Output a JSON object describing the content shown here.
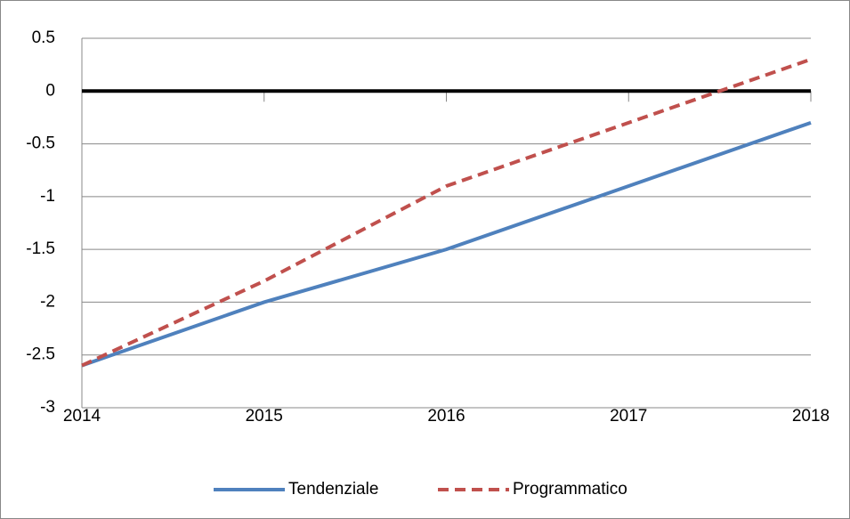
{
  "chart_data": {
    "type": "line",
    "x": [
      2014,
      2015,
      2016,
      2017,
      2018
    ],
    "series": [
      {
        "name": "Tendenziale",
        "color": "#4f81bd",
        "style": "solid",
        "values": [
          -2.6,
          -2.0,
          -1.5,
          -0.9,
          -0.3
        ]
      },
      {
        "name": "Programmatico",
        "color": "#c0504d",
        "style": "dashed",
        "values": [
          -2.6,
          -1.8,
          -0.9,
          -0.3,
          0.3
        ]
      }
    ],
    "xlim": [
      2014,
      2018
    ],
    "xticks": [
      2014,
      2015,
      2016,
      2017,
      2018
    ],
    "ylim": [
      -3,
      0.5
    ],
    "yticks": [
      -3,
      -2.5,
      -2,
      -1.5,
      -1,
      -0.5,
      0,
      0.5
    ],
    "grid": true,
    "legend": "bottom"
  }
}
